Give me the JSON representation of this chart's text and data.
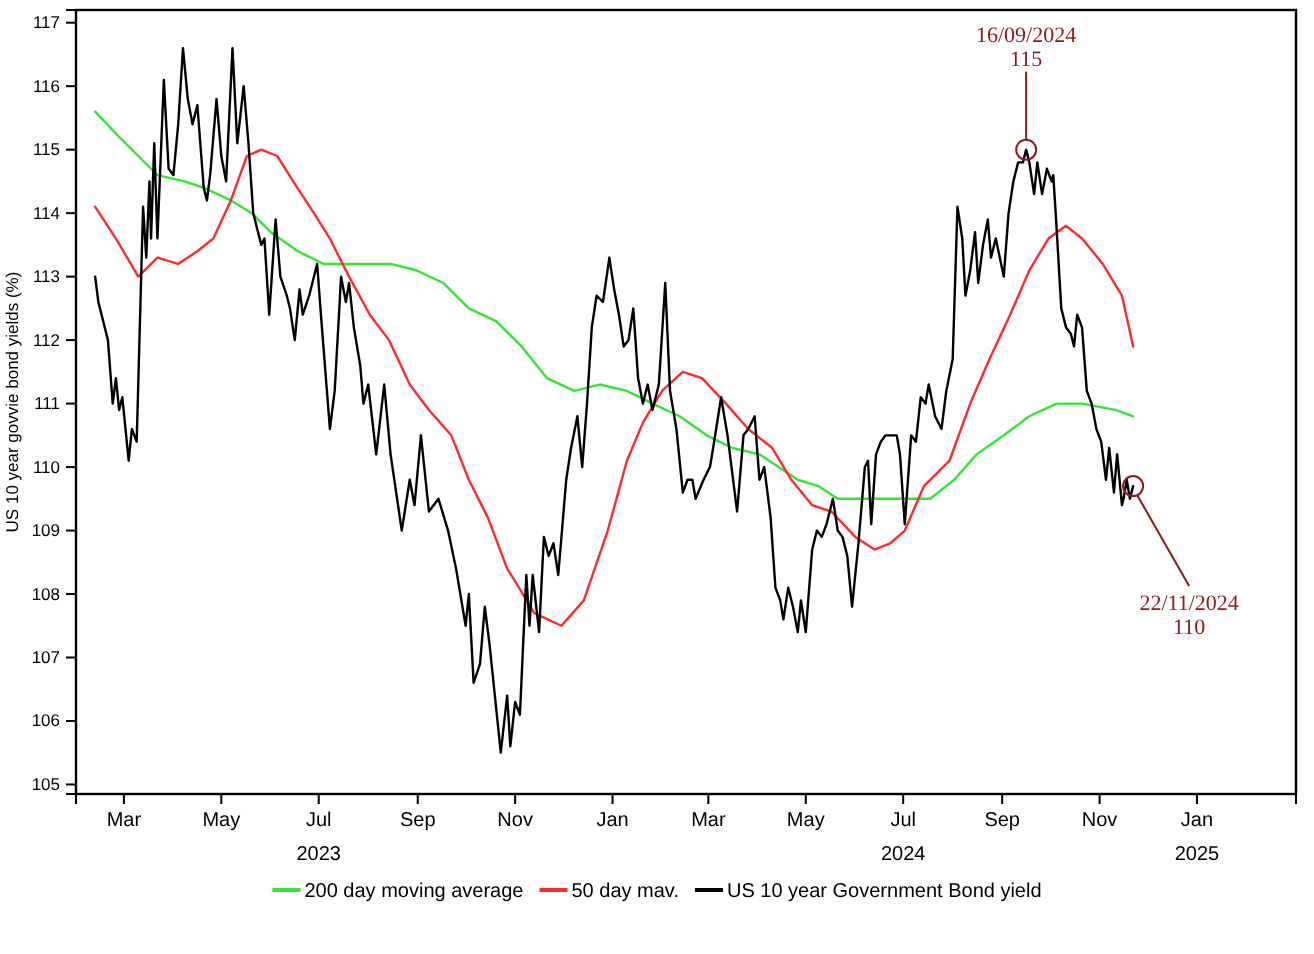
{
  "chart_data": {
    "type": "line",
    "ylabel": "US 10 year govvie bond yields (%)",
    "xlim": [
      "2023-01-30",
      "2025-03-04"
    ],
    "xticks": [
      {
        "value": "2023-03-01",
        "label": "Mar"
      },
      {
        "value": "2023-05-01",
        "label": "May"
      },
      {
        "value": "2023-07-01",
        "label": "Jul\n2023"
      },
      {
        "value": "2023-09-01",
        "label": "Sep"
      },
      {
        "value": "2023-11-01",
        "label": "Nov"
      },
      {
        "value": "2024-01-01",
        "label": "Jan"
      },
      {
        "value": "2024-03-01",
        "label": "Mar"
      },
      {
        "value": "2024-05-01",
        "label": "May"
      },
      {
        "value": "2024-07-01",
        "label": "Jul\n2024"
      },
      {
        "value": "2024-09-01",
        "label": "Sep"
      },
      {
        "value": "2024-11-01",
        "label": "Nov"
      },
      {
        "value": "2025-01-01",
        "label": "Jan\n2025"
      }
    ],
    "ylim": [
      104.85,
      117.2
    ],
    "yticks": [
      105,
      106,
      107,
      108,
      109,
      110,
      111,
      112,
      113,
      114,
      115,
      116,
      117
    ],
    "grid": false,
    "legend": "bottom",
    "marker": "none",
    "line_style": "solid",
    "series": [
      {
        "name": "200 day moving average",
        "color": "#33e633",
        "x": [
          "2023-02-11",
          "2023-02-26",
          "2023-03-10",
          "2023-03-22",
          "2023-04-08",
          "2023-04-20",
          "2023-05-07",
          "2023-05-20",
          "2023-06-01",
          "2023-06-18",
          "2023-07-04",
          "2023-07-17",
          "2023-07-29",
          "2023-08-15",
          "2023-08-31",
          "2023-09-17",
          "2023-10-03",
          "2023-10-20",
          "2023-11-05",
          "2023-11-21",
          "2023-12-08",
          "2023-12-24",
          "2024-01-10",
          "2024-01-26",
          "2024-02-12",
          "2024-02-29",
          "2024-03-16",
          "2024-04-02",
          "2024-04-14",
          "2024-04-26",
          "2024-05-09",
          "2024-05-21",
          "2024-06-03",
          "2024-06-19",
          "2024-07-02",
          "2024-07-18",
          "2024-08-02",
          "2024-08-16",
          "2024-09-02",
          "2024-09-18",
          "2024-10-05",
          "2024-10-21",
          "2024-11-11",
          "2024-11-22"
        ],
        "values": [
          115.6,
          115.2,
          114.9,
          114.6,
          114.5,
          114.4,
          114.2,
          114.0,
          113.7,
          113.4,
          113.2,
          113.2,
          113.2,
          113.2,
          113.1,
          112.9,
          112.5,
          112.3,
          111.9,
          111.4,
          111.2,
          111.3,
          111.2,
          111.0,
          110.8,
          110.5,
          110.3,
          110.2,
          110.0,
          109.8,
          109.7,
          109.5,
          109.5,
          109.5,
          109.5,
          109.5,
          109.8,
          110.2,
          110.5,
          110.8,
          111.0,
          111.0,
          110.9,
          110.8
        ]
      },
      {
        "name": "50 day mav.",
        "color": "#ff2a2a",
        "x": [
          "2023-02-11",
          "2023-02-24",
          "2023-03-10",
          "2023-03-22",
          "2023-04-04",
          "2023-04-16",
          "2023-04-26",
          "2023-05-07",
          "2023-05-17",
          "2023-05-26",
          "2023-06-05",
          "2023-06-15",
          "2023-06-28",
          "2023-07-08",
          "2023-07-20",
          "2023-08-02",
          "2023-08-14",
          "2023-08-27",
          "2023-09-08",
          "2023-09-22",
          "2023-10-03",
          "2023-10-15",
          "2023-10-27",
          "2023-11-01",
          "2023-11-13",
          "2023-11-30",
          "2023-12-14",
          "2023-12-29",
          "2024-01-10",
          "2024-01-20",
          "2024-02-01",
          "2024-02-14",
          "2024-02-26",
          "2024-03-12",
          "2024-03-26",
          "2024-04-10",
          "2024-04-22",
          "2024-05-05",
          "2024-05-17",
          "2024-06-01",
          "2024-06-13",
          "2024-06-23",
          "2024-07-02",
          "2024-07-14",
          "2024-07-30",
          "2024-08-12",
          "2024-08-24",
          "2024-09-06",
          "2024-09-18",
          "2024-09-30",
          "2024-10-11",
          "2024-10-21",
          "2024-11-03",
          "2024-11-15",
          "2024-11-22"
        ],
        "values": [
          114.1,
          113.6,
          113.0,
          113.3,
          113.2,
          113.4,
          113.6,
          114.2,
          114.9,
          115.0,
          114.9,
          114.5,
          114.0,
          113.6,
          113.0,
          112.4,
          112.0,
          111.3,
          110.9,
          110.5,
          109.8,
          109.2,
          108.4,
          108.2,
          107.7,
          107.5,
          107.9,
          109.0,
          110.1,
          110.7,
          111.2,
          111.5,
          111.4,
          111.0,
          110.6,
          110.3,
          109.8,
          109.4,
          109.3,
          108.9,
          108.7,
          108.8,
          109.0,
          109.7,
          110.1,
          111.0,
          111.7,
          112.4,
          113.1,
          113.6,
          113.8,
          113.6,
          113.2,
          112.7,
          111.9
        ]
      },
      {
        "name": "US 10 year Government Bond yield",
        "color": "#000000",
        "x": [
          "2023-02-11",
          "2023-02-13",
          "2023-02-19",
          "2023-02-22",
          "2023-02-24",
          "2023-02-26",
          "2023-02-28",
          "2023-03-04",
          "2023-03-06",
          "2023-03-09",
          "2023-03-13",
          "2023-03-15",
          "2023-03-17",
          "2023-03-18",
          "2023-03-20",
          "2023-03-22",
          "2023-03-26",
          "2023-03-29",
          "2023-04-01",
          "2023-04-04",
          "2023-04-07",
          "2023-04-10",
          "2023-04-13",
          "2023-04-16",
          "2023-04-20",
          "2023-04-22",
          "2023-04-24",
          "2023-04-28",
          "2023-05-01",
          "2023-05-04",
          "2023-05-08",
          "2023-05-11",
          "2023-05-15",
          "2023-05-18",
          "2023-05-21",
          "2023-05-26",
          "2023-05-28",
          "2023-05-31",
          "2023-06-04",
          "2023-06-07",
          "2023-06-11",
          "2023-06-13",
          "2023-06-16",
          "2023-06-19",
          "2023-06-21",
          "2023-06-25",
          "2023-06-30",
          "2023-07-03",
          "2023-07-08",
          "2023-07-11",
          "2023-07-15",
          "2023-07-18",
          "2023-07-20",
          "2023-07-23",
          "2023-07-27",
          "2023-07-29",
          "2023-08-01",
          "2023-08-06",
          "2023-08-11",
          "2023-08-15",
          "2023-08-22",
          "2023-08-27",
          "2023-08-30",
          "2023-09-03",
          "2023-09-08",
          "2023-09-14",
          "2023-09-20",
          "2023-09-25",
          "2023-10-01",
          "2023-10-03",
          "2023-10-06",
          "2023-10-10",
          "2023-10-13",
          "2023-10-16",
          "2023-10-23",
          "2023-10-27",
          "2023-10-29",
          "2023-11-01",
          "2023-11-04",
          "2023-11-08",
          "2023-11-10",
          "2023-11-12",
          "2023-11-16",
          "2023-11-19",
          "2023-11-22",
          "2023-11-25",
          "2023-11-28",
          "2023-12-03",
          "2023-12-06",
          "2023-12-10",
          "2023-12-13",
          "2023-12-16",
          "2023-12-19",
          "2023-12-22",
          "2023-12-26",
          "2023-12-30",
          "2024-01-02",
          "2024-01-05",
          "2024-01-08",
          "2024-01-11",
          "2024-01-14",
          "2024-01-17",
          "2024-01-20",
          "2024-01-23",
          "2024-01-26",
          "2024-01-30",
          "2024-02-03",
          "2024-02-06",
          "2024-02-10",
          "2024-02-14",
          "2024-02-17",
          "2024-02-20",
          "2024-02-22",
          "2024-02-27",
          "2024-03-02",
          "2024-03-04",
          "2024-03-09",
          "2024-03-13",
          "2024-03-19",
          "2024-03-23",
          "2024-03-26",
          "2024-03-30",
          "2024-04-02",
          "2024-04-05",
          "2024-04-09",
          "2024-04-12",
          "2024-04-15",
          "2024-04-17",
          "2024-04-20",
          "2024-04-23",
          "2024-04-26",
          "2024-04-28",
          "2024-05-01",
          "2024-05-05",
          "2024-05-08",
          "2024-05-11",
          "2024-05-14",
          "2024-05-18",
          "2024-05-21",
          "2024-05-24",
          "2024-05-27",
          "2024-05-30",
          "2024-06-03",
          "2024-06-07",
          "2024-06-09",
          "2024-06-11",
          "2024-06-14",
          "2024-06-17",
          "2024-06-20",
          "2024-06-23",
          "2024-06-27",
          "2024-06-29",
          "2024-07-02",
          "2024-07-06",
          "2024-07-09",
          "2024-07-12",
          "2024-07-15",
          "2024-07-17",
          "2024-07-21",
          "2024-07-25",
          "2024-07-28",
          "2024-08-01",
          "2024-08-04",
          "2024-08-07",
          "2024-08-09",
          "2024-08-12",
          "2024-08-15",
          "2024-08-17",
          "2024-08-20",
          "2024-08-23",
          "2024-08-25",
          "2024-08-28",
          "2024-09-02",
          "2024-09-05",
          "2024-09-08",
          "2024-09-11",
          "2024-09-14",
          "2024-09-16",
          "2024-09-18",
          "2024-09-21",
          "2024-09-23",
          "2024-09-26",
          "2024-09-29",
          "2024-10-02",
          "2024-10-03",
          "2024-10-05",
          "2024-10-08",
          "2024-10-11",
          "2024-10-14",
          "2024-10-16",
          "2024-10-18",
          "2024-10-21",
          "2024-10-24",
          "2024-10-27",
          "2024-10-30",
          "2024-11-02",
          "2024-11-05",
          "2024-11-07",
          "2024-11-10",
          "2024-11-12",
          "2024-11-15",
          "2024-11-16",
          "2024-11-18",
          "2024-11-20",
          "2024-11-22"
        ],
        "values": [
          113.0,
          112.6,
          112.0,
          111.0,
          111.4,
          110.9,
          111.1,
          110.1,
          110.6,
          110.4,
          114.1,
          113.3,
          114.5,
          113.6,
          115.1,
          113.6,
          116.1,
          114.7,
          114.6,
          115.4,
          116.6,
          115.8,
          115.4,
          115.7,
          114.4,
          114.2,
          114.6,
          115.8,
          114.9,
          114.5,
          116.6,
          115.1,
          116.0,
          115.1,
          114.0,
          113.5,
          113.6,
          112.4,
          113.9,
          113.0,
          112.7,
          112.5,
          112.0,
          112.8,
          112.4,
          112.7,
          113.2,
          112.2,
          110.6,
          111.2,
          113.0,
          112.6,
          112.9,
          112.2,
          111.6,
          111.0,
          111.3,
          110.2,
          111.3,
          110.2,
          109.0,
          109.8,
          109.4,
          110.5,
          109.3,
          109.5,
          109.0,
          108.4,
          107.5,
          108.0,
          106.6,
          106.9,
          107.8,
          107.2,
          105.5,
          106.4,
          105.6,
          106.3,
          106.1,
          108.3,
          107.5,
          108.3,
          107.4,
          108.9,
          108.6,
          108.8,
          108.3,
          109.8,
          110.3,
          110.8,
          110.0,
          111.0,
          112.2,
          112.7,
          112.6,
          113.3,
          112.8,
          112.4,
          111.9,
          112.0,
          112.5,
          111.4,
          111.0,
          111.3,
          110.9,
          111.3,
          112.9,
          111.2,
          110.6,
          109.6,
          109.8,
          109.8,
          109.5,
          109.8,
          110.0,
          110.3,
          111.1,
          110.5,
          109.3,
          110.5,
          110.6,
          110.8,
          109.8,
          110.0,
          109.2,
          108.1,
          107.9,
          107.6,
          108.1,
          107.8,
          107.4,
          107.9,
          107.4,
          108.7,
          109.0,
          108.9,
          109.1,
          109.5,
          109.0,
          108.9,
          108.6,
          107.8,
          108.8,
          110.0,
          110.1,
          109.1,
          110.2,
          110.4,
          110.5,
          110.5,
          110.5,
          110.2,
          109.1,
          110.5,
          110.4,
          111.1,
          111.0,
          111.3,
          110.8,
          110.6,
          111.2,
          111.7,
          114.1,
          113.6,
          112.7,
          113.1,
          113.7,
          112.9,
          113.5,
          113.9,
          113.3,
          113.6,
          113.0,
          114.0,
          114.5,
          114.8,
          114.8,
          115.0,
          114.8,
          114.3,
          114.8,
          114.3,
          114.7,
          114.5,
          114.6,
          113.8,
          112.5,
          112.2,
          112.1,
          111.9,
          112.4,
          112.2,
          111.2,
          111.0,
          110.6,
          110.4,
          109.8,
          110.3,
          109.6,
          110.2,
          109.4,
          109.5,
          109.8,
          109.5,
          109.7
        ]
      }
    ],
    "annotations": [
      {
        "text": "16/09/2024\n115",
        "x": "2024-09-16",
        "y": 115.0
      },
      {
        "text": "22/11/2024\n110",
        "x": "2024-11-22",
        "y": 109.7
      }
    ]
  }
}
